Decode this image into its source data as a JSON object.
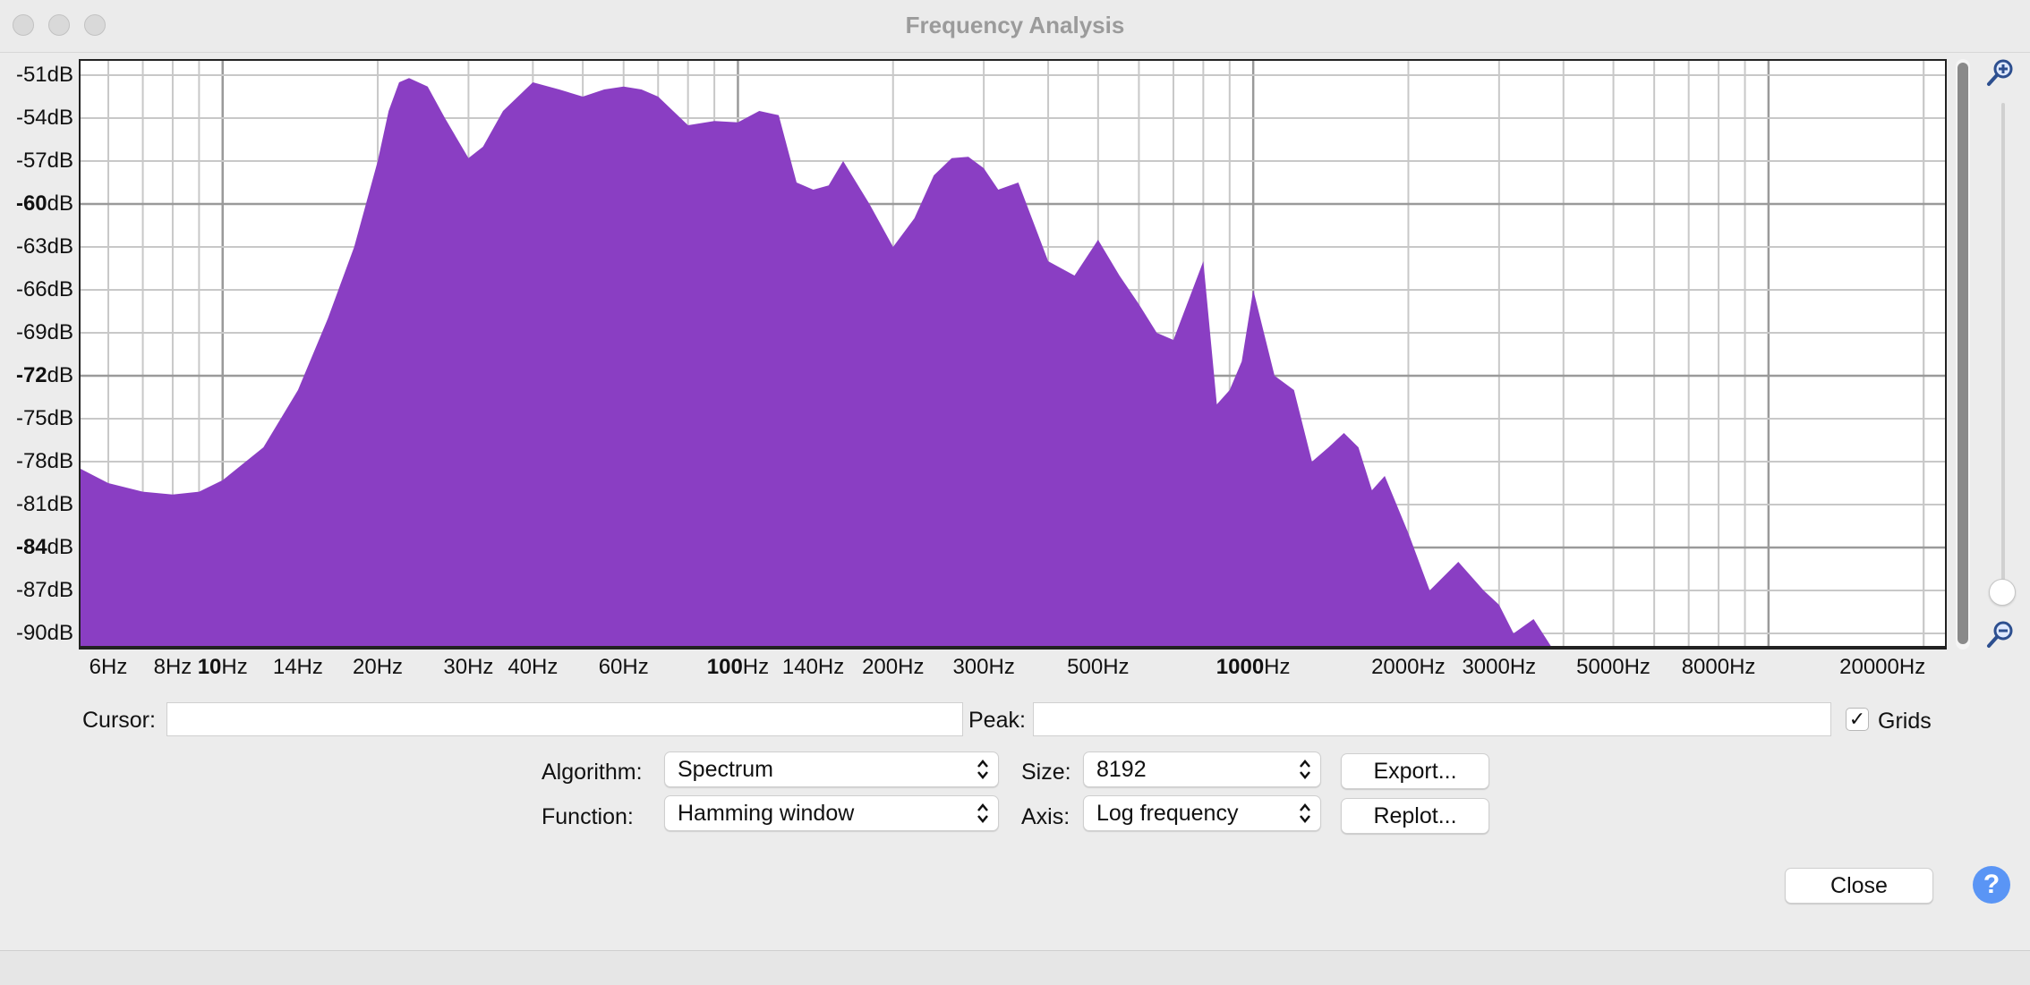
{
  "window": {
    "title": "Frequency Analysis"
  },
  "chart_data": {
    "type": "area",
    "x_scale": "log",
    "xlim": [
      5.3,
      22000
    ],
    "ylim": [
      -91,
      -50
    ],
    "fill_color": "#8a3ec3",
    "grid": true,
    "y_ticks": [
      "-51dB",
      "-54dB",
      "-57dB",
      "-60dB",
      "-63dB",
      "-66dB",
      "-69dB",
      "-72dB",
      "-75dB",
      "-78dB",
      "-81dB",
      "-84dB",
      "-87dB",
      "-90dB"
    ],
    "x_ticks": [
      "6Hz",
      "8Hz",
      "10Hz",
      "14Hz",
      "20Hz",
      "30Hz",
      "40Hz",
      "60Hz",
      "100Hz",
      "140Hz",
      "200Hz",
      "300Hz",
      "500Hz",
      "1000Hz",
      "2000Hz",
      "3000Hz",
      "5000Hz",
      "8000Hz",
      "20000Hz"
    ],
    "x": [
      5.3,
      6,
      7,
      8,
      9,
      10,
      12,
      14,
      16,
      18,
      20,
      21,
      22,
      23,
      25,
      27,
      30,
      32,
      35,
      40,
      45,
      50,
      55,
      60,
      65,
      70,
      80,
      90,
      100,
      110,
      120,
      130,
      140,
      150,
      160,
      180,
      200,
      220,
      240,
      260,
      280,
      300,
      320,
      350,
      400,
      450,
      500,
      550,
      600,
      650,
      700,
      800,
      850,
      900,
      950,
      1000,
      1100,
      1200,
      1300,
      1400,
      1500,
      1600,
      1700,
      1800,
      2000,
      2200,
      2500,
      2800,
      3000,
      3200,
      3500,
      3800,
      4000
    ],
    "y": [
      -78.5,
      -79.5,
      -80.1,
      -80.3,
      -80.1,
      -79.3,
      -77,
      -73,
      -68,
      -63,
      -57,
      -53.5,
      -51.5,
      -51.2,
      -51.8,
      -54,
      -56.8,
      -56,
      -53.5,
      -51.5,
      -52,
      -52.5,
      -52,
      -51.8,
      -52,
      -52.5,
      -54.5,
      -54.2,
      -54.3,
      -53.5,
      -53.8,
      -58.5,
      -59,
      -58.7,
      -57,
      -60,
      -63,
      -61,
      -58,
      -56.8,
      -56.7,
      -57.5,
      -59,
      -58.5,
      -64,
      -65,
      -62.5,
      -65,
      -67,
      -69,
      -69.5,
      -64,
      -74,
      -73,
      -71,
      -66,
      -72,
      -73,
      -78,
      -77,
      -76,
      -77,
      -80,
      -79,
      -83,
      -87,
      -85,
      -87,
      -88,
      -90,
      -89,
      -91,
      -91
    ]
  },
  "controls": {
    "cursor_label": "Cursor:",
    "cursor_value": "",
    "peak_label": "Peak:",
    "peak_value": "",
    "grids_label": "Grids",
    "grids_checked": "✓",
    "algorithm_label": "Algorithm:",
    "algorithm_value": "Spectrum",
    "size_label": "Size:",
    "size_value": "8192",
    "function_label": "Function:",
    "function_value": "Hamming window",
    "axis_label": "Axis:",
    "axis_value": "Log frequency",
    "export_label": "Export...",
    "replot_label": "Replot...",
    "close_label": "Close",
    "help_label": "?"
  },
  "icons": {
    "zoom_in": "zoom-in-icon",
    "zoom_out": "zoom-out-icon",
    "help": "help-icon"
  }
}
